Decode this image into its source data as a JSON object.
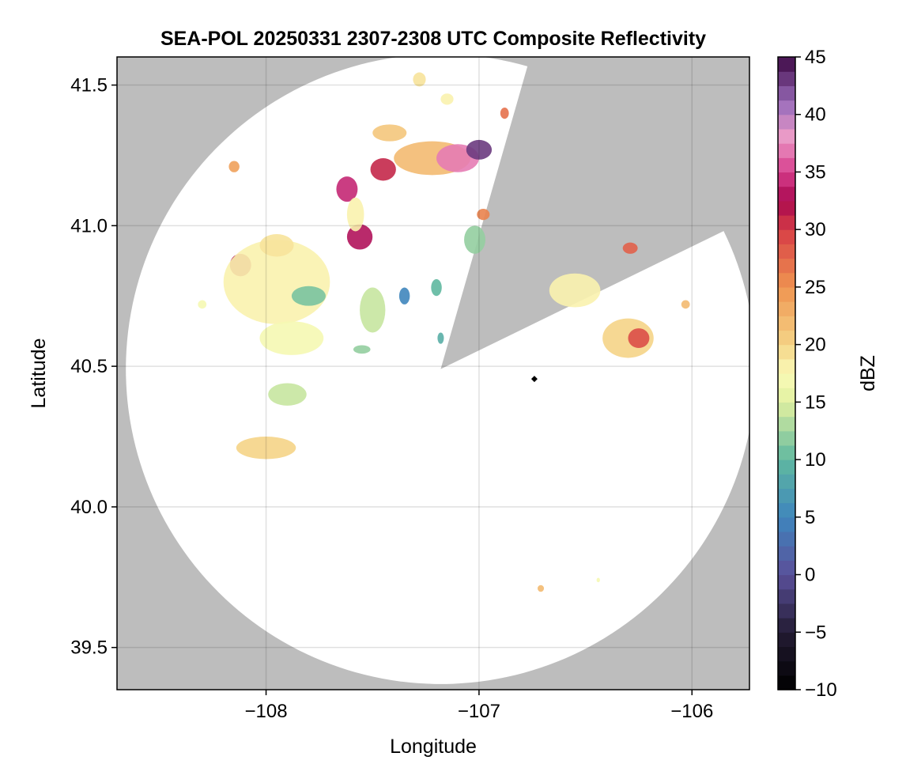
{
  "map": {
    "title": "SEA-POL 20250331 2307-2308 UTC Composite Reflectivity",
    "xlabel": "Longitude",
    "ylabel": "Latitude",
    "xlim": [
      -108.7,
      -105.73
    ],
    "ylim": [
      39.35,
      41.6
    ],
    "x_ticks": [
      -108,
      -107,
      -106
    ],
    "x_tick_labels": [
      "−108",
      "−107",
      "−106"
    ],
    "y_ticks": [
      39.5,
      40.0,
      40.5,
      41.0,
      41.5
    ],
    "y_tick_labels": [
      "39.5",
      "40.0",
      "40.5",
      "41.0",
      "41.5"
    ],
    "radar_center": [
      -107.18,
      40.49
    ],
    "radar_range_deg_lat": 1.12,
    "blocked_sectors_deg_from_north": [
      [
        16,
        64
      ]
    ],
    "background_color": "#bdbdbd",
    "coverage_color": "#ffffff",
    "marker": {
      "lon": -106.74,
      "lat": 40.455,
      "color": "#000000"
    }
  },
  "colorbar": {
    "label": "dBZ",
    "min": -10,
    "max": 45,
    "step": 1.25,
    "ticks": [
      -10,
      -5,
      0,
      5,
      10,
      15,
      20,
      25,
      30,
      35,
      40,
      45
    ],
    "tick_labels": [
      "−10",
      "−5",
      "0",
      "5",
      "10",
      "15",
      "20",
      "25",
      "30",
      "35",
      "40",
      "45"
    ],
    "colormap_stops": [
      {
        "v": -10,
        "c": "#000000"
      },
      {
        "v": -5,
        "c": "#231b33"
      },
      {
        "v": 0,
        "c": "#5a4f9a"
      },
      {
        "v": 5,
        "c": "#3f86bd"
      },
      {
        "v": 10,
        "c": "#5fb8a0"
      },
      {
        "v": 15,
        "c": "#e0f0a0"
      },
      {
        "v": 17.5,
        "c": "#fafab8"
      },
      {
        "v": 20,
        "c": "#f5d487"
      },
      {
        "v": 25,
        "c": "#ef9450"
      },
      {
        "v": 30,
        "c": "#d73d46"
      },
      {
        "v": 32.5,
        "c": "#a8084f"
      },
      {
        "v": 35,
        "c": "#d63d8c"
      },
      {
        "v": 38,
        "c": "#ec9cc8"
      },
      {
        "v": 41,
        "c": "#9b6dbb"
      },
      {
        "v": 45,
        "c": "#3d0845"
      }
    ]
  },
  "echoes": [
    {
      "id": "cell-nw-core",
      "lon": -107.22,
      "lat": 41.24,
      "rx": 0.18,
      "ry": 0.06,
      "dbz": 22
    },
    {
      "id": "cell-nw-main",
      "lon": -107.1,
      "lat": 41.24,
      "rx": 0.1,
      "ry": 0.05,
      "dbz": 37
    },
    {
      "id": "cell-nw-peak",
      "lon": -107.0,
      "lat": 41.27,
      "rx": 0.06,
      "ry": 0.035,
      "dbz": 43
    },
    {
      "id": "cell-nw-west",
      "lon": -107.45,
      "lat": 41.2,
      "rx": 0.06,
      "ry": 0.04,
      "dbz": 31
    },
    {
      "id": "cell-nw-north",
      "lon": -107.42,
      "lat": 41.33,
      "rx": 0.08,
      "ry": 0.03,
      "dbz": 21
    },
    {
      "id": "cell-north-tip",
      "lon": -107.28,
      "lat": 41.52,
      "rx": 0.03,
      "ry": 0.025,
      "dbz": 19
    },
    {
      "id": "cell-north-2",
      "lon": -107.15,
      "lat": 41.45,
      "rx": 0.03,
      "ry": 0.02,
      "dbz": 18
    },
    {
      "id": "cell-north-3",
      "lon": -106.88,
      "lat": 41.4,
      "rx": 0.02,
      "ry": 0.02,
      "dbz": 27
    },
    {
      "id": "cell-mid-a",
      "lon": -107.62,
      "lat": 41.13,
      "rx": 0.05,
      "ry": 0.045,
      "dbz": 34
    },
    {
      "id": "cell-mid-b",
      "lon": -107.56,
      "lat": 40.96,
      "rx": 0.06,
      "ry": 0.045,
      "dbz": 33
    },
    {
      "id": "cell-mid-c",
      "lon": -107.58,
      "lat": 41.04,
      "rx": 0.04,
      "ry": 0.06,
      "dbz": 18
    },
    {
      "id": "cell-far-nw",
      "lon": -108.15,
      "lat": 41.21,
      "rx": 0.025,
      "ry": 0.02,
      "dbz": 24
    },
    {
      "id": "cell-west-core",
      "lon": -108.12,
      "lat": 40.86,
      "rx": 0.05,
      "ry": 0.04,
      "dbz": 32
    },
    {
      "id": "cell-west-field",
      "lon": -107.95,
      "lat": 40.8,
      "rx": 0.25,
      "ry": 0.15,
      "dbz": 18
    },
    {
      "id": "cell-west-green",
      "lon": -107.8,
      "lat": 40.75,
      "rx": 0.08,
      "ry": 0.035,
      "dbz": 11
    },
    {
      "id": "cell-west-south",
      "lon": -107.88,
      "lat": 40.6,
      "rx": 0.15,
      "ry": 0.06,
      "dbz": 17
    },
    {
      "id": "cell-west-arc",
      "lon": -107.95,
      "lat": 40.93,
      "rx": 0.08,
      "ry": 0.04,
      "dbz": 19
    },
    {
      "id": "cell-center-a",
      "lon": -107.5,
      "lat": 40.7,
      "rx": 0.06,
      "ry": 0.08,
      "dbz": 14
    },
    {
      "id": "cell-center-b",
      "lon": -107.35,
      "lat": 40.75,
      "rx": 0.025,
      "ry": 0.03,
      "dbz": 5
    },
    {
      "id": "cell-center-c",
      "lon": -107.2,
      "lat": 40.78,
      "rx": 0.025,
      "ry": 0.03,
      "dbz": 10
    },
    {
      "id": "cell-center-d",
      "lon": -107.02,
      "lat": 40.95,
      "rx": 0.05,
      "ry": 0.05,
      "dbz": 12
    },
    {
      "id": "cell-center-e",
      "lon": -106.98,
      "lat": 41.04,
      "rx": 0.03,
      "ry": 0.02,
      "dbz": 26
    },
    {
      "id": "cell-center-f",
      "lon": -107.18,
      "lat": 40.6,
      "rx": 0.015,
      "ry": 0.02,
      "dbz": 9
    },
    {
      "id": "cell-center-g",
      "lon": -107.55,
      "lat": 40.56,
      "rx": 0.04,
      "ry": 0.015,
      "dbz": 12
    },
    {
      "id": "cell-sw-a",
      "lon": -107.9,
      "lat": 40.4,
      "rx": 0.09,
      "ry": 0.04,
      "dbz": 14
    },
    {
      "id": "cell-sw-b",
      "lon": -108.0,
      "lat": 40.21,
      "rx": 0.14,
      "ry": 0.04,
      "dbz": 20
    },
    {
      "id": "cell-sw-c",
      "lon": -108.3,
      "lat": 40.72,
      "rx": 0.02,
      "ry": 0.015,
      "dbz": 17
    },
    {
      "id": "cell-e-a",
      "lon": -106.55,
      "lat": 40.77,
      "rx": 0.12,
      "ry": 0.06,
      "dbz": 18
    },
    {
      "id": "cell-e-b",
      "lon": -106.3,
      "lat": 40.6,
      "rx": 0.12,
      "ry": 0.07,
      "dbz": 20
    },
    {
      "id": "cell-e-c",
      "lon": -106.25,
      "lat": 40.6,
      "rx": 0.05,
      "ry": 0.035,
      "dbz": 29
    },
    {
      "id": "cell-e-d",
      "lon": -106.29,
      "lat": 40.92,
      "rx": 0.035,
      "ry": 0.02,
      "dbz": 28
    },
    {
      "id": "cell-e-e",
      "lon": -106.03,
      "lat": 40.72,
      "rx": 0.02,
      "ry": 0.015,
      "dbz": 22
    },
    {
      "id": "cell-s-a",
      "lon": -106.71,
      "lat": 39.71,
      "rx": 0.015,
      "ry": 0.012,
      "dbz": 22
    },
    {
      "id": "cell-s-b",
      "lon": -106.44,
      "lat": 39.74,
      "rx": 0.008,
      "ry": 0.008,
      "dbz": 17
    }
  ]
}
